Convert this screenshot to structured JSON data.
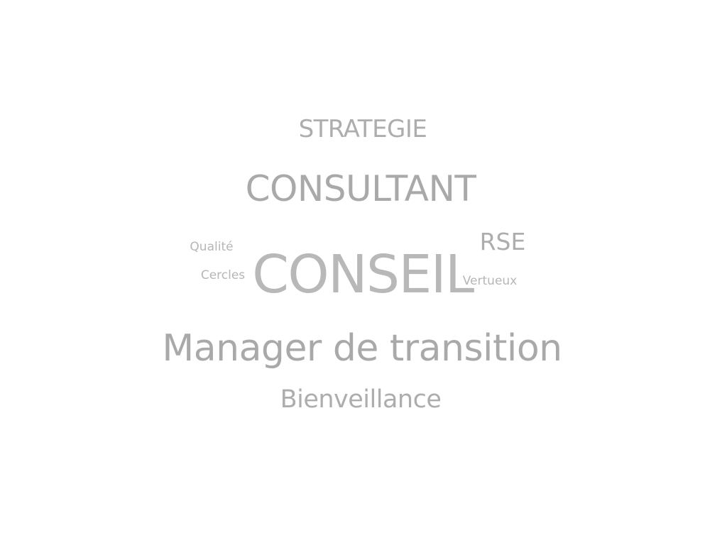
{
  "word_cloud": {
    "words": {
      "strategie": "STRATEGIE",
      "consultant": "CONSULTANT",
      "rse": "RSE",
      "qualite": "Qualité",
      "cercles": "Cercles",
      "conseil": "CONSEIL",
      "vertueux": "Vertueux",
      "manager": "Manager de transition",
      "bienveillance": "Bienveillance"
    },
    "text_color": "#b3b3b3",
    "background_color": "#ffffff"
  }
}
